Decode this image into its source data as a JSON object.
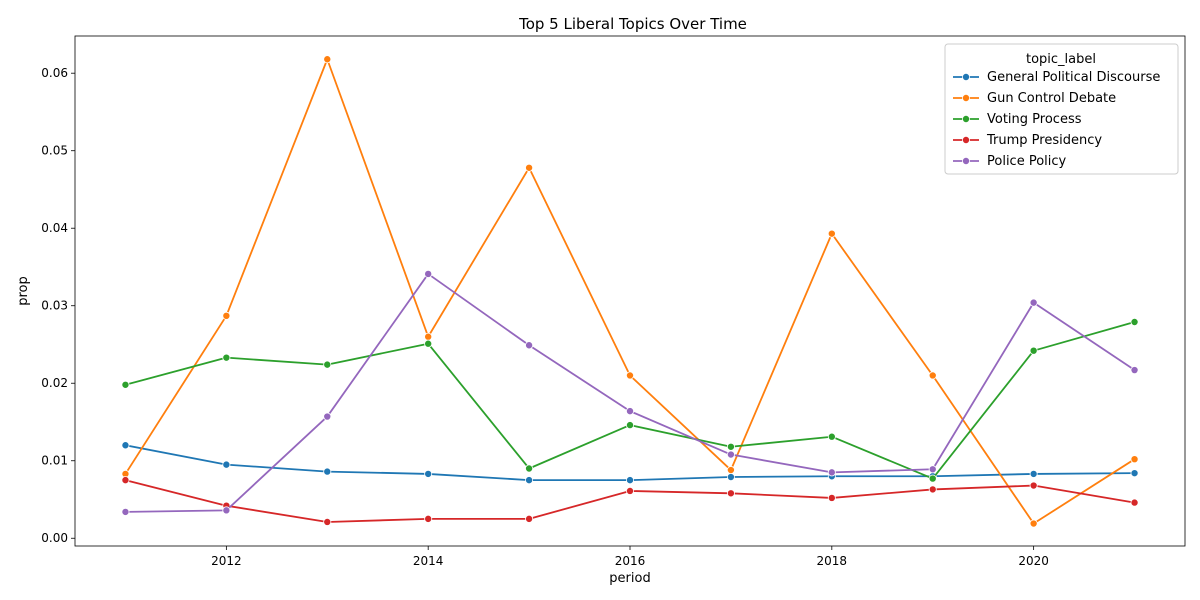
{
  "chart_data": {
    "type": "line",
    "title": "Top 5 Liberal Topics Over Time",
    "xlabel": "period",
    "ylabel": "prop",
    "x": [
      2011,
      2012,
      2013,
      2014,
      2015,
      2016,
      2017,
      2018,
      2019,
      2020,
      2021
    ],
    "xticks": [
      "2012",
      "2014",
      "2016",
      "2018",
      "2020"
    ],
    "yticks": [
      "0.00",
      "0.01",
      "0.02",
      "0.03",
      "0.04",
      "0.05",
      "0.06"
    ],
    "xlim": [
      2010.5,
      2021.5
    ],
    "ylim": [
      -0.001,
      0.0648
    ],
    "grid": false,
    "legend": {
      "title": "topic_label",
      "placement": "top-right"
    },
    "series": [
      {
        "name": "General Political Discourse",
        "color": "#1f77b4",
        "values": [
          0.012,
          0.0095,
          0.0086,
          0.0083,
          0.0075,
          0.0075,
          0.0079,
          0.008,
          0.008,
          0.0083,
          0.0084
        ]
      },
      {
        "name": "Gun Control Debate",
        "color": "#ff7f0e",
        "values": [
          0.0083,
          0.0287,
          0.0618,
          0.026,
          0.0478,
          0.021,
          0.0088,
          0.0393,
          0.021,
          0.0019,
          0.0102
        ]
      },
      {
        "name": "Voting Process",
        "color": "#2ca02c",
        "values": [
          0.0198,
          0.0233,
          0.0224,
          0.0251,
          0.009,
          0.0146,
          0.0118,
          0.0131,
          0.0077,
          0.0242,
          0.0279
        ]
      },
      {
        "name": "Trump Presidency",
        "color": "#d62728",
        "values": [
          0.0075,
          0.0042,
          0.0021,
          0.0025,
          0.0025,
          0.0061,
          0.0058,
          0.0052,
          0.0063,
          0.0068,
          0.0046
        ]
      },
      {
        "name": "Police Policy",
        "color": "#9467bd",
        "values": [
          0.0034,
          0.0036,
          0.0157,
          0.0341,
          0.0249,
          0.0164,
          0.0108,
          0.0085,
          0.0089,
          0.0304,
          0.0217
        ]
      }
    ]
  }
}
